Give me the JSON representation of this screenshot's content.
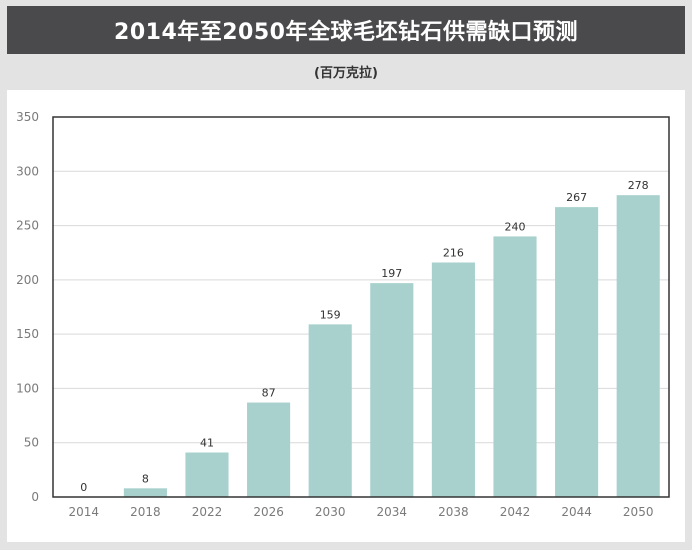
{
  "header": {
    "title": "2014年至2050年全球毛坯钻石供需缺口预测",
    "unit": "(百万克拉)"
  },
  "colors": {
    "bar": "#a8d1cd",
    "title_bg": "#4a4a4c",
    "grid": "#d9d9d9",
    "axis": "#333333"
  },
  "chart_data": {
    "type": "bar",
    "title": "2014年至2050年全球毛坯钻石供需缺口预测",
    "subtitle": "(百万克拉)",
    "xlabel": "",
    "ylabel": "",
    "categories": [
      "2014",
      "2018",
      "2022",
      "2026",
      "2030",
      "2034",
      "2038",
      "2042",
      "2044",
      "2050"
    ],
    "values": [
      0,
      8,
      41,
      87,
      159,
      197,
      216,
      240,
      267,
      278
    ],
    "data_labels": [
      "0",
      "8",
      "41",
      "87",
      "159",
      "197",
      "216",
      "240",
      "267",
      "278"
    ],
    "ylim": [
      0,
      350
    ],
    "yticks": [
      0,
      50,
      100,
      150,
      200,
      250,
      300,
      350
    ],
    "grid": true,
    "legend": "none"
  }
}
